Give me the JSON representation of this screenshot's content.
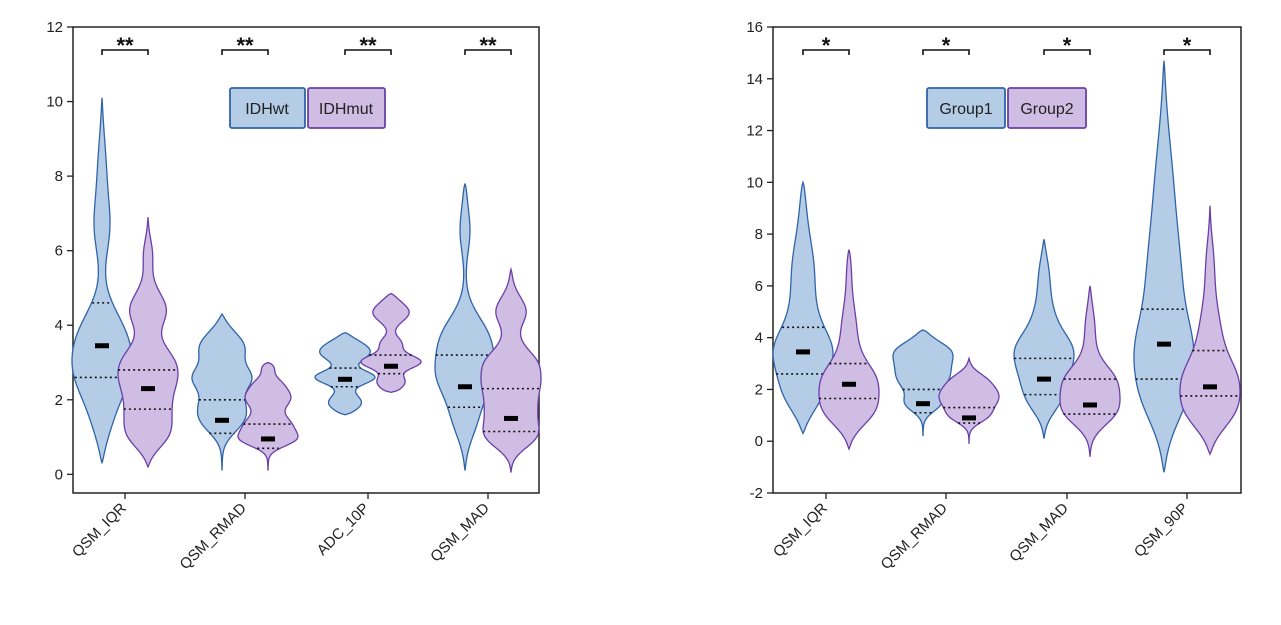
{
  "colors": {
    "blue_fill": "#b4cce6",
    "blue_edge": "#2f64a8",
    "purple_fill": "#cfbde3",
    "purple_edge": "#6b3fa8",
    "axis": "#222222"
  },
  "chart_data": [
    {
      "type": "violin",
      "ylim": [
        -0.5,
        12
      ],
      "yticks": [
        0,
        2,
        4,
        6,
        8,
        10,
        12
      ],
      "categories": [
        "QSM_IQR",
        "QSM_RMAD",
        "ADC_10P",
        "QSM_MAD"
      ],
      "legend": [
        "IDHwt",
        "IDHmut"
      ],
      "significance": [
        "**",
        "**",
        "**",
        "**"
      ],
      "series": [
        {
          "name": "IDHwt",
          "min": [
            0.3,
            0.1,
            1.6,
            0.1
          ],
          "max": [
            10.1,
            4.3,
            3.8,
            7.8
          ],
          "median": [
            3.45,
            1.45,
            2.55,
            2.35
          ],
          "q1": [
            2.6,
            1.1,
            2.35,
            1.8
          ],
          "q3": [
            4.6,
            2.0,
            2.85,
            3.2
          ],
          "modes": [
            [
              3.3,
              0.45,
              0.5
            ],
            [
              8.2,
              0.2,
              0.7
            ],
            [
              1.3,
              0.2,
              0.4
            ],
            [
              3.6,
              0.2,
              0.35
            ],
            [
              2.6,
              0.45,
              0.35
            ],
            [
              1.8,
              0.45,
              0.6
            ],
            [
              4.0,
              0.2,
              0.4
            ],
            [
              6.6,
              0.2,
              0.4
            ]
          ]
        },
        {
          "name": "IDHmut",
          "min": [
            0.2,
            0.1,
            2.2,
            0.05
          ],
          "max": [
            6.9,
            3.0,
            4.85,
            5.5
          ],
          "median": [
            2.3,
            0.95,
            2.9,
            1.5
          ],
          "q1": [
            1.75,
            0.7,
            2.7,
            1.15
          ],
          "q3": [
            2.8,
            1.35,
            3.2,
            2.3
          ],
          "modes": [
            [
              2.1,
              0.55,
              0.5
            ],
            [
              6.0,
              0.2,
              0.35
            ],
            [
              4.2,
              0.15,
              0.35
            ],
            [
              0.9,
              0.55,
              0.3
            ],
            [
              2.5,
              0.2,
              0.25
            ],
            [
              3.0,
              0.5,
              0.3
            ],
            [
              4.4,
              0.2,
              0.3
            ],
            [
              1.3,
              0.5,
              0.45
            ],
            [
              4.7,
              0.25,
              0.4
            ],
            [
              3.5,
              0.15,
              0.3
            ]
          ]
        }
      ]
    },
    {
      "type": "violin",
      "ylim": [
        -2,
        16
      ],
      "yticks": [
        -2,
        0,
        2,
        4,
        6,
        8,
        10,
        12,
        14,
        16
      ],
      "categories": [
        "QSM_IQR",
        "QSM_RMAD",
        "QSM_MAD",
        "QSM_90P"
      ],
      "legend": [
        "Group1",
        "Group2"
      ],
      "significance": [
        "*",
        "*",
        "*",
        "*"
      ],
      "series": [
        {
          "name": "Group1",
          "min": [
            0.3,
            0.2,
            0.1,
            -1.2
          ],
          "max": [
            10.0,
            4.3,
            7.8,
            14.7
          ],
          "median": [
            3.45,
            1.45,
            2.4,
            3.75
          ],
          "q1": [
            2.6,
            1.1,
            1.8,
            2.4
          ],
          "q3": [
            4.4,
            2.0,
            3.2,
            5.1
          ],
          "modes": [
            [
              3.3,
              0.45,
              0.7
            ],
            [
              8.5,
              0.2,
              0.9
            ],
            [
              1.4,
              0.45,
              0.4
            ],
            [
              3.6,
              0.2,
              0.35
            ],
            [
              2.3,
              0.45,
              0.6
            ],
            [
              6.8,
              0.2,
              0.6
            ],
            [
              3.8,
              0.45,
              1.3
            ],
            [
              12.5,
              0.15,
              1.0
            ],
            [
              10.5,
              0.12,
              0.6
            ]
          ]
        },
        {
          "name": "Group2",
          "min": [
            -0.3,
            -0.1,
            -0.6,
            -0.5
          ],
          "max": [
            7.4,
            3.2,
            6.0,
            9.1
          ],
          "median": [
            2.2,
            0.9,
            1.4,
            2.1
          ],
          "q1": [
            1.65,
            0.7,
            1.05,
            1.75
          ],
          "q3": [
            3.0,
            1.3,
            2.4,
            3.5
          ],
          "modes": [
            [
              2.0,
              0.55,
              0.8
            ],
            [
              5.5,
              0.12,
              0.8
            ],
            [
              0.9,
              0.55,
              0.4
            ],
            [
              2.5,
              0.2,
              0.35
            ],
            [
              1.4,
              0.5,
              0.6
            ],
            [
              4.5,
              0.2,
              0.6
            ],
            [
              2.0,
              0.5,
              0.9
            ],
            [
              7.2,
              0.18,
              0.6
            ]
          ]
        }
      ]
    }
  ]
}
